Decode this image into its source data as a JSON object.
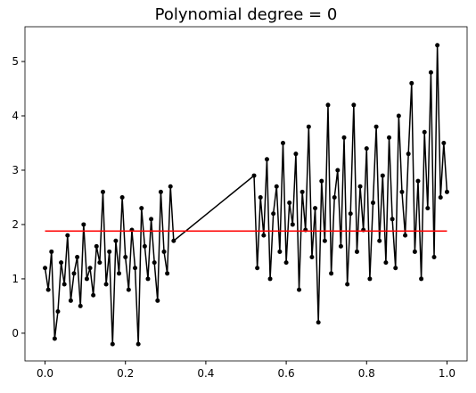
{
  "chart_data": {
    "type": "line",
    "title": "Polynomial degree = 0",
    "xlim": [
      -0.05,
      1.05
    ],
    "ylim": [
      -0.51,
      5.64
    ],
    "xticks": [
      {
        "value": 0,
        "label": "0.0"
      },
      {
        "value": 0.2,
        "label": "0.2"
      },
      {
        "value": 0.4,
        "label": "0.4"
      },
      {
        "value": 0.6,
        "label": "0.6"
      },
      {
        "value": 0.8,
        "label": "0.8"
      },
      {
        "value": 1,
        "label": "1.0"
      }
    ],
    "yticks": [
      0,
      1,
      2,
      3,
      4,
      5
    ],
    "grid": false,
    "series": [
      {
        "color": "#000000",
        "marker": true,
        "x": [
          0,
          0.008,
          0.016,
          0.024,
          0.032,
          0.04,
          0.048,
          0.056,
          0.064,
          0.072,
          0.08,
          0.088,
          0.096,
          0.104,
          0.112,
          0.12,
          0.128,
          0.136,
          0.144,
          0.152,
          0.16,
          0.168,
          0.176,
          0.184,
          0.192,
          0.2,
          0.208,
          0.216,
          0.224,
          0.232,
          0.24,
          0.248,
          0.256,
          0.264,
          0.272,
          0.28,
          0.288,
          0.296,
          0.304,
          0.312,
          0.32,
          0.52,
          0.528,
          0.536,
          0.544,
          0.552,
          0.56,
          0.568,
          0.576,
          0.584,
          0.592,
          0.6,
          0.608,
          0.616,
          0.624,
          0.632,
          0.64,
          0.648,
          0.656,
          0.664,
          0.672,
          0.68,
          0.688,
          0.696,
          0.704,
          0.712,
          0.72,
          0.728,
          0.736,
          0.744,
          0.752,
          0.76,
          0.768,
          0.776,
          0.784,
          0.792,
          0.8,
          0.808,
          0.816,
          0.824,
          0.832,
          0.84,
          0.848,
          0.856,
          0.864,
          0.872,
          0.88,
          0.888,
          0.896,
          0.904,
          0.912,
          0.92,
          0.928,
          0.936,
          0.944,
          0.952,
          0.96,
          0.968,
          0.976,
          0.984,
          0.992,
          1.0
        ],
        "values": [
          1.2,
          0.8,
          1.5,
          -0.1,
          0.4,
          1.3,
          0.9,
          1.8,
          0.6,
          1.1,
          1.4,
          0.5,
          2.0,
          1.0,
          1.2,
          0.7,
          1.6,
          1.3,
          2.6,
          0.9,
          1.5,
          -0.2,
          1.7,
          1.1,
          2.5,
          1.4,
          0.8,
          1.9,
          1.2,
          -0.2,
          2.3,
          1.6,
          1.0,
          2.1,
          1.3,
          0.6,
          2.6,
          1.5,
          1.1,
          2.7,
          1.7,
          2.9,
          1.2,
          2.5,
          1.8,
          3.2,
          1.0,
          2.2,
          2.7,
          1.5,
          3.5,
          1.3,
          2.4,
          2.0,
          3.3,
          0.8,
          2.6,
          1.9,
          3.8,
          1.4,
          2.3,
          0.2,
          2.8,
          1.7,
          4.2,
          1.1,
          2.5,
          3.0,
          1.6,
          3.6,
          0.9,
          2.2,
          4.2,
          1.5,
          2.7,
          1.9,
          3.4,
          1.0,
          2.4,
          3.8,
          1.7,
          2.9,
          1.3,
          3.6,
          2.1,
          1.2,
          4.0,
          2.6,
          1.8,
          3.3,
          4.6,
          1.5,
          2.8,
          1.0,
          3.7,
          2.3,
          4.8,
          1.4,
          5.3,
          2.5,
          3.5,
          2.6
        ]
      },
      {
        "color": "#ff0000",
        "marker": false,
        "x": [
          0,
          1
        ],
        "values": [
          1.88,
          1.88
        ]
      }
    ]
  }
}
